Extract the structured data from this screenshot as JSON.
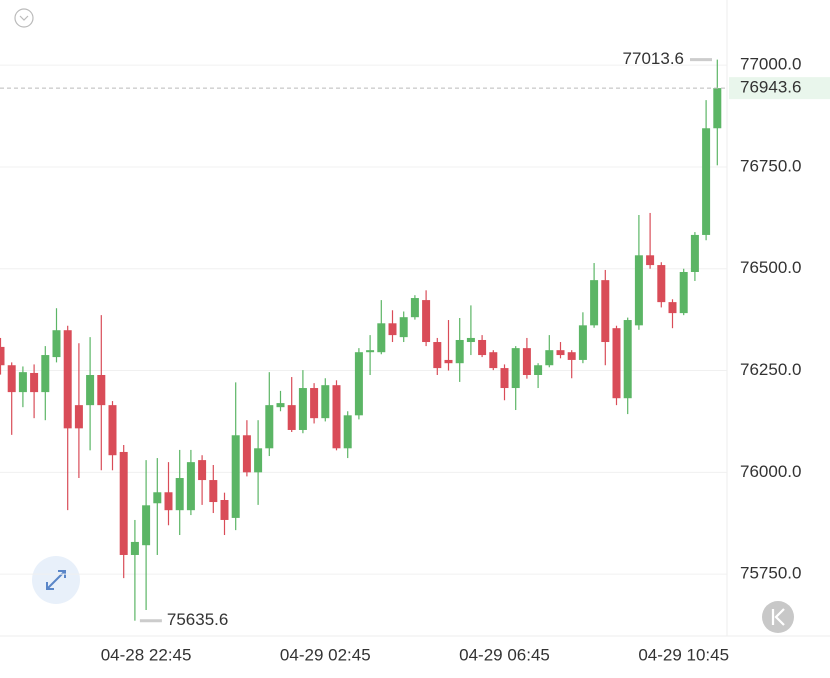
{
  "chart_data": {
    "type": "candlestick",
    "categories": [
      null,
      null,
      null,
      null,
      null,
      null,
      null,
      null,
      null,
      null,
      null,
      null,
      null,
      "04-28 22:45",
      null,
      null,
      null,
      null,
      null,
      null,
      null,
      null,
      null,
      null,
      null,
      null,
      null,
      null,
      null,
      "04-29 02:45",
      null,
      null,
      null,
      null,
      null,
      null,
      null,
      null,
      null,
      null,
      null,
      null,
      null,
      null,
      null,
      "04-29 06:45",
      null,
      null,
      null,
      null,
      null,
      null,
      null,
      null,
      null,
      null,
      null,
      null,
      null,
      null,
      null,
      "04-29 10:45",
      null,
      null,
      null
    ],
    "open": [
      76308,
      76263,
      76197,
      76244,
      76197,
      76283,
      76349,
      76165,
      76165,
      76239,
      76165,
      76050,
      75797,
      75821,
      75924,
      75951,
      75907,
      75907,
      76030,
      75981,
      75932,
      75888,
      76091,
      76000,
      76059,
      76160,
      76165,
      76104,
      76207,
      76133,
      76214,
      76059,
      76140,
      76295,
      76295,
      76366,
      76332,
      76381,
      76423,
      76320,
      76276,
      76268,
      76320,
      76325,
      76295,
      76256,
      76207,
      76305,
      76239,
      76263,
      76300,
      76295,
      76276,
      76361,
      76472,
      76354,
      76182,
      76361,
      76533,
      76509,
      76418,
      76391,
      76492,
      76583,
      76845
    ],
    "high": [
      76330,
      76270,
      76260,
      76265,
      76310,
      76403,
      76360,
      76317,
      76332,
      76386,
      76175,
      76067,
      75883,
      76030,
      76035,
      76025,
      76055,
      76055,
      76042,
      76018,
      75950,
      76221,
      76128,
      76128,
      76246,
      76200,
      76234,
      76251,
      76219,
      76231,
      76226,
      76150,
      76305,
      76337,
      76423,
      76398,
      76395,
      76435,
      76447,
      76330,
      76374,
      76379,
      76410,
      76337,
      76300,
      76265,
      76310,
      76330,
      76268,
      76337,
      76320,
      76300,
      76393,
      76514,
      76497,
      76360,
      76380,
      76632,
      76637,
      76516,
      76425,
      76500,
      76590,
      76914,
      77013.6
    ],
    "low": [
      76240,
      76092,
      76160,
      76133,
      76128,
      76270,
      75907,
      75986,
      76054,
      76005,
      76005,
      75740,
      75635.6,
      75662,
      75797,
      75870,
      75846,
      75895,
      75920,
      75900,
      75846,
      75858,
      75990,
      75920,
      76040,
      76150,
      76099,
      76096,
      76120,
      76125,
      76054,
      76035,
      76130,
      76239,
      76290,
      76320,
      76320,
      76375,
      76310,
      76239,
      76250,
      76222,
      76288,
      76283,
      76251,
      76177,
      76153,
      76230,
      76207,
      76258,
      76280,
      76231,
      76268,
      76355,
      76263,
      76165,
      76143,
      76350,
      76500,
      76405,
      76354,
      76386,
      76470,
      76570,
      76754
    ],
    "close": [
      76263,
      76197,
      76246,
      76197,
      76288,
      76349,
      76108,
      76108,
      76239,
      76165,
      76042,
      75797,
      75829,
      75919,
      75951,
      75907,
      75986,
      76025,
      75981,
      75927,
      75883,
      76091,
      76000,
      76059,
      76165,
      76170,
      76104,
      76207,
      76133,
      76214,
      76059,
      76140,
      76295,
      76300,
      76366,
      76337,
      76381,
      76428,
      76320,
      76256,
      76268,
      76325,
      76330,
      76288,
      76256,
      76207,
      76305,
      76239,
      76263,
      76300,
      76288,
      76276,
      76361,
      76472,
      76320,
      76182,
      76374,
      76533,
      76509,
      76418,
      76391,
      76492,
      76583,
      76845,
      76943.6
    ],
    "up_color": "#5bb565",
    "down_color": "#d94c58",
    "ylim": [
      75598,
      77160
    ],
    "yticks": [
      {
        "value": 75750,
        "label": "75750.0"
      },
      {
        "value": 76000,
        "label": "76000.0"
      },
      {
        "value": 76250,
        "label": "76250.0"
      },
      {
        "value": 76500,
        "label": "76500.0"
      },
      {
        "value": 76750,
        "label": "76750.0"
      },
      {
        "value": 77000,
        "label": "77000.0"
      }
    ],
    "grid": true
  }
}
